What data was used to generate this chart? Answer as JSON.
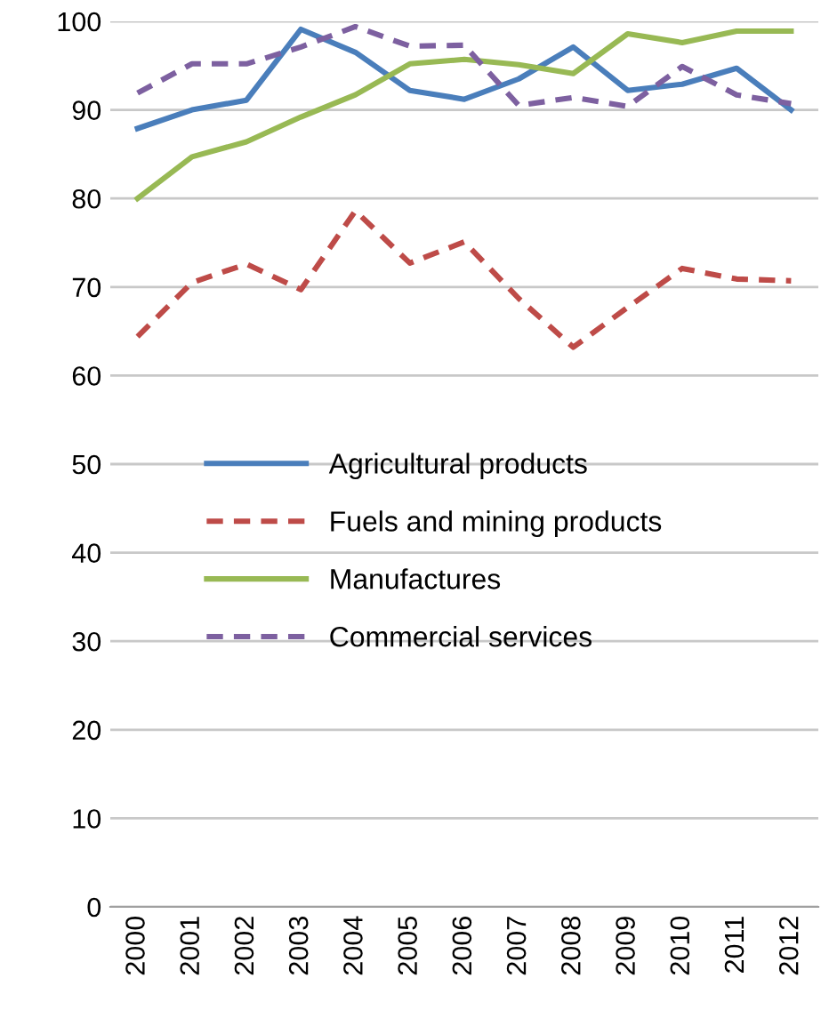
{
  "chart_data": {
    "type": "line",
    "categories": [
      "2000",
      "2001",
      "2002",
      "2003",
      "2004",
      "2005",
      "2006",
      "2007",
      "2008",
      "2009",
      "2010",
      "2011",
      "2012"
    ],
    "series": [
      {
        "name": "Agricultural products",
        "color": "#4a7ebb",
        "line_style": "solid",
        "values": [
          87.9,
          90,
          91.1,
          99.1,
          96.5,
          92.2,
          91.2,
          93.5,
          97.1,
          92.2,
          92.9,
          94.7,
          90
        ]
      },
      {
        "name": "Fuels and mining products",
        "color": "#be4b48",
        "line_style": "dashed",
        "values": [
          64.4,
          70.5,
          72.6,
          69.7,
          78.6,
          72.7,
          75.1,
          68.7,
          63.2,
          67.7,
          72.1,
          70.9,
          70.7
        ]
      },
      {
        "name": "Manufactures",
        "color": "#98b954",
        "line_style": "solid",
        "values": [
          80,
          84.7,
          86.4,
          89.2,
          91.7,
          95.2,
          95.7,
          95.1,
          94.1,
          98.6,
          97.6,
          98.9,
          98.9
        ]
      },
      {
        "name": "Commercial services",
        "color": "#7d60a0",
        "line_style": "dashed",
        "values": [
          91.9,
          95.2,
          95.2,
          97.1,
          99.4,
          97.2,
          97.3,
          90.5,
          91.4,
          90.4,
          94.9,
          91.7,
          90.7
        ]
      }
    ],
    "ylim": [
      0,
      100
    ],
    "yticks": [
      0,
      10,
      20,
      30,
      40,
      50,
      60,
      70,
      80,
      90,
      100
    ],
    "grid": "y",
    "legend": "left",
    "marker": "none"
  }
}
